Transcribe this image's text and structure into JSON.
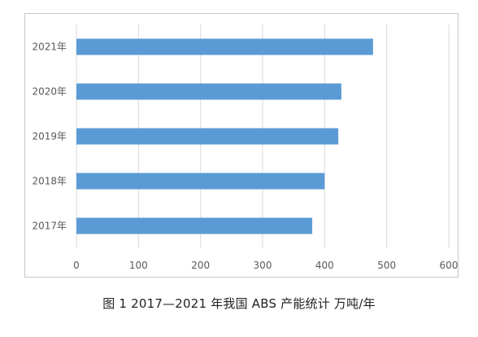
{
  "caption": "图 1   2017—2021 年我国 ABS 产能统计   万吨/年",
  "chart_data": {
    "type": "bar",
    "orientation": "horizontal",
    "categories": [
      "2017年",
      "2018年",
      "2019年",
      "2020年",
      "2021年"
    ],
    "values": [
      380,
      400,
      422,
      427,
      478
    ],
    "xlim": [
      0,
      600
    ],
    "xticks": [
      "0",
      "100",
      "200",
      "300",
      "400",
      "500",
      "600"
    ],
    "grid": "vertical",
    "legend": "none",
    "bar_color": "#5b9bd5",
    "grid_color": "#d9d9d9"
  }
}
